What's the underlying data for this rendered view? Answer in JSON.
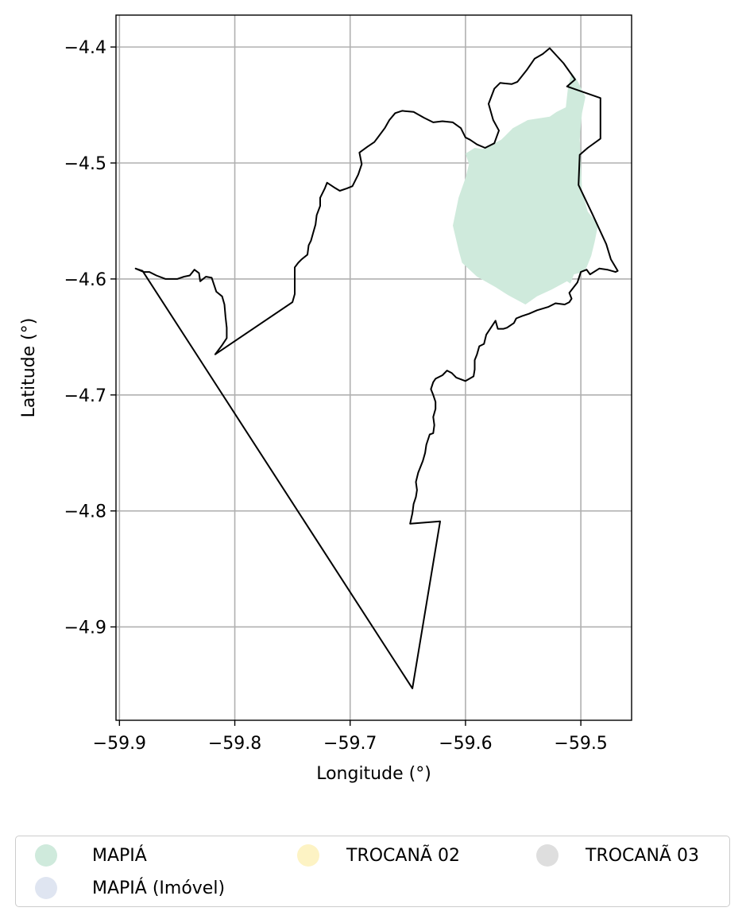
{
  "chart_data": {
    "type": "map",
    "xlabel": "Longitude (°)",
    "ylabel": "Latitude (°)",
    "xlim": [
      -59.903,
      -59.456
    ],
    "ylim": [
      -4.9805,
      -4.3725
    ],
    "grid": true,
    "x_ticks": [
      -59.9,
      -59.8,
      -59.7,
      -59.6,
      -59.5
    ],
    "x_tick_labels": [
      "−59.9",
      "−59.8",
      "−59.7",
      "−59.6",
      "−59.5"
    ],
    "y_ticks": [
      -4.4,
      -4.5,
      -4.6,
      -4.7,
      -4.8,
      -4.9
    ],
    "y_tick_labels": [
      "−4.4",
      "−4.5",
      "−4.6",
      "−4.7",
      "−4.8",
      "−4.9"
    ],
    "boundary_color": "#000000",
    "boundary": [
      [
        -59.527,
        -4.401
      ],
      [
        -59.515,
        -4.414
      ],
      [
        -59.505,
        -4.428
      ],
      [
        -59.512,
        -4.434
      ],
      [
        -59.483,
        -4.444
      ],
      [
        -59.483,
        -4.479
      ],
      [
        -59.494,
        -4.487
      ],
      [
        -59.501,
        -4.493
      ],
      [
        -59.502,
        -4.519
      ],
      [
        -59.49,
        -4.544
      ],
      [
        -59.478,
        -4.57
      ],
      [
        -59.474,
        -4.583
      ],
      [
        -59.468,
        -4.593
      ],
      [
        -59.47,
        -4.594
      ],
      [
        -59.477,
        -4.592
      ],
      [
        -59.484,
        -4.591
      ],
      [
        -59.492,
        -4.596
      ],
      [
        -59.495,
        -4.592
      ],
      [
        -59.5,
        -4.594
      ],
      [
        -59.503,
        -4.603
      ],
      [
        -59.51,
        -4.612
      ],
      [
        -59.508,
        -4.617
      ],
      [
        -59.51,
        -4.62
      ],
      [
        -59.514,
        -4.622
      ],
      [
        -59.522,
        -4.621
      ],
      [
        -59.528,
        -4.624
      ],
      [
        -59.538,
        -4.627
      ],
      [
        -59.545,
        -4.63
      ],
      [
        -59.551,
        -4.632
      ],
      [
        -59.556,
        -4.634
      ],
      [
        -59.558,
        -4.638
      ],
      [
        -59.564,
        -4.642
      ],
      [
        -59.567,
        -4.643
      ],
      [
        -59.572,
        -4.643
      ],
      [
        -59.574,
        -4.636
      ],
      [
        -59.578,
        -4.642
      ],
      [
        -59.582,
        -4.648
      ],
      [
        -59.584,
        -4.656
      ],
      [
        -59.588,
        -4.658
      ],
      [
        -59.59,
        -4.665
      ],
      [
        -59.592,
        -4.67
      ],
      [
        -59.592,
        -4.678
      ],
      [
        -59.593,
        -4.684
      ],
      [
        -59.6,
        -4.688
      ],
      [
        -59.608,
        -4.685
      ],
      [
        -59.612,
        -4.681
      ],
      [
        -59.616,
        -4.679
      ],
      [
        -59.62,
        -4.683
      ],
      [
        -59.626,
        -4.686
      ],
      [
        -59.628,
        -4.689
      ],
      [
        -59.63,
        -4.695
      ],
      [
        -59.628,
        -4.7
      ],
      [
        -59.626,
        -4.706
      ],
      [
        -59.626,
        -4.712
      ],
      [
        -59.628,
        -4.719
      ],
      [
        -59.627,
        -4.726
      ],
      [
        -59.628,
        -4.733
      ],
      [
        -59.631,
        -4.734
      ],
      [
        -59.634,
        -4.743
      ],
      [
        -59.635,
        -4.75
      ],
      [
        -59.637,
        -4.757
      ],
      [
        -59.641,
        -4.767
      ],
      [
        -59.643,
        -4.775
      ],
      [
        -59.642,
        -4.782
      ],
      [
        -59.643,
        -4.788
      ],
      [
        -59.645,
        -4.794
      ],
      [
        -59.646,
        -4.802
      ],
      [
        -59.648,
        -4.811
      ],
      [
        -59.622,
        -4.809
      ],
      [
        -59.646,
        -4.953
      ],
      [
        -59.88,
        -4.593
      ],
      [
        -59.886,
        -4.591
      ],
      [
        -59.879,
        -4.594
      ],
      [
        -59.874,
        -4.594
      ],
      [
        -59.868,
        -4.597
      ],
      [
        -59.86,
        -4.6
      ],
      [
        -59.85,
        -4.6
      ],
      [
        -59.844,
        -4.598
      ],
      [
        -59.839,
        -4.597
      ],
      [
        -59.835,
        -4.592
      ],
      [
        -59.831,
        -4.595
      ],
      [
        -59.83,
        -4.602
      ],
      [
        -59.825,
        -4.598
      ],
      [
        -59.82,
        -4.599
      ],
      [
        -59.818,
        -4.605
      ],
      [
        -59.816,
        -4.611
      ],
      [
        -59.811,
        -4.615
      ],
      [
        -59.809,
        -4.622
      ],
      [
        -59.808,
        -4.633
      ],
      [
        -59.807,
        -4.642
      ],
      [
        -59.807,
        -4.651
      ],
      [
        -59.811,
        -4.657
      ],
      [
        -59.817,
        -4.665
      ],
      [
        -59.75,
        -4.62
      ],
      [
        -59.748,
        -4.613
      ],
      [
        -59.748,
        -4.6
      ],
      [
        -59.748,
        -4.59
      ],
      [
        -59.745,
        -4.586
      ],
      [
        -59.742,
        -4.583
      ],
      [
        -59.737,
        -4.579
      ],
      [
        -59.736,
        -4.571
      ],
      [
        -59.734,
        -4.567
      ],
      [
        -59.732,
        -4.56
      ],
      [
        -59.73,
        -4.553
      ],
      [
        -59.729,
        -4.545
      ],
      [
        -59.726,
        -4.537
      ],
      [
        -59.726,
        -4.53
      ],
      [
        -59.722,
        -4.522
      ],
      [
        -59.72,
        -4.517
      ],
      [
        -59.714,
        -4.521
      ],
      [
        -59.709,
        -4.524
      ],
      [
        -59.703,
        -4.522
      ],
      [
        -59.698,
        -4.52
      ],
      [
        -59.693,
        -4.51
      ],
      [
        -59.69,
        -4.501
      ],
      [
        -59.692,
        -4.491
      ],
      [
        -59.685,
        -4.486
      ],
      [
        -59.679,
        -4.482
      ],
      [
        -59.676,
        -4.478
      ],
      [
        -59.67,
        -4.47
      ],
      [
        -59.666,
        -4.463
      ],
      [
        -59.661,
        -4.457
      ],
      [
        -59.655,
        -4.455
      ],
      [
        -59.645,
        -4.456
      ],
      [
        -59.636,
        -4.461
      ],
      [
        -59.628,
        -4.465
      ],
      [
        -59.62,
        -4.464
      ],
      [
        -59.611,
        -4.465
      ],
      [
        -59.604,
        -4.47
      ],
      [
        -59.6,
        -4.478
      ],
      [
        -59.596,
        -4.48
      ],
      [
        -59.59,
        -4.484
      ],
      [
        -59.583,
        -4.487
      ],
      [
        -59.575,
        -4.483
      ],
      [
        -59.571,
        -4.472
      ],
      [
        -59.576,
        -4.463
      ],
      [
        -59.58,
        -4.449
      ],
      [
        -59.575,
        -4.436
      ],
      [
        -59.57,
        -4.431
      ],
      [
        -59.56,
        -4.432
      ],
      [
        -59.555,
        -4.43
      ],
      [
        -59.547,
        -4.42
      ],
      [
        -59.54,
        -4.41
      ],
      [
        -59.533,
        -4.406
      ],
      [
        -59.527,
        -4.401
      ]
    ],
    "shaded_areas": [
      {
        "name": "MAPIÁ",
        "color": "#cfeadc",
        "polygon": [
          [
            -59.508,
            -4.422
          ],
          [
            -59.511,
            -4.434
          ],
          [
            -59.513,
            -4.452
          ],
          [
            -59.521,
            -4.456
          ],
          [
            -59.527,
            -4.46
          ],
          [
            -59.546,
            -4.463
          ],
          [
            -59.559,
            -4.47
          ],
          [
            -59.569,
            -4.48
          ],
          [
            -59.579,
            -4.485
          ],
          [
            -59.585,
            -4.488
          ],
          [
            -59.592,
            -4.487
          ],
          [
            -59.6,
            -4.492
          ],
          [
            -59.597,
            -4.501
          ],
          [
            -59.6,
            -4.513
          ],
          [
            -59.606,
            -4.53
          ],
          [
            -59.611,
            -4.554
          ],
          [
            -59.606,
            -4.575
          ],
          [
            -59.603,
            -4.586
          ],
          [
            -59.59,
            -4.598
          ],
          [
            -59.574,
            -4.607
          ],
          [
            -59.563,
            -4.614
          ],
          [
            -59.548,
            -4.622
          ],
          [
            -59.538,
            -4.615
          ],
          [
            -59.525,
            -4.609
          ],
          [
            -59.512,
            -4.602
          ],
          [
            -59.509,
            -4.604
          ],
          [
            -59.506,
            -4.596
          ],
          [
            -59.498,
            -4.594
          ],
          [
            -59.495,
            -4.59
          ],
          [
            -59.491,
            -4.58
          ],
          [
            -59.488,
            -4.568
          ],
          [
            -59.485,
            -4.553
          ],
          [
            -59.494,
            -4.542
          ],
          [
            -59.499,
            -4.524
          ],
          [
            -59.5,
            -4.496
          ],
          [
            -59.501,
            -4.48
          ],
          [
            -59.5,
            -4.468
          ],
          [
            -59.499,
            -4.457
          ],
          [
            -59.496,
            -4.443
          ],
          [
            -59.503,
            -4.429
          ]
        ]
      }
    ],
    "legend": {
      "position": "below",
      "entries": [
        {
          "label": "MAPIÁ",
          "color": "#cfeadc"
        },
        {
          "label": "TROCANÃ 02",
          "color": "#fdf3c4"
        },
        {
          "label": "TROCANÃ 03",
          "color": "#dedede"
        },
        {
          "label": "MAPIÁ (Imóvel)",
          "color": "#dfe5f1"
        }
      ]
    }
  }
}
